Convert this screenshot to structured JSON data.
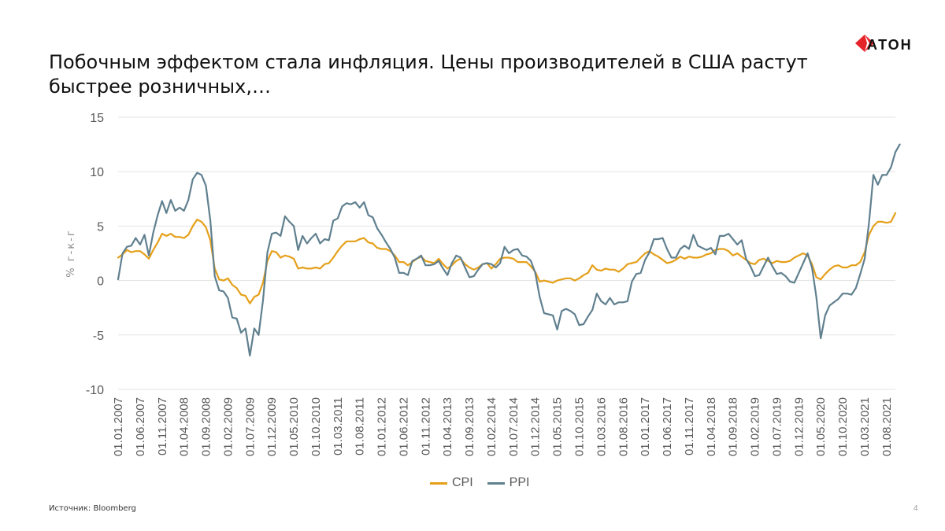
{
  "title": "Побочным эффектом стала инфляция. Цены производителей в США растут быстрее розничных,…",
  "logo": {
    "text": "АТОН"
  },
  "source": "Источник: Bloomberg",
  "page_number": "4",
  "colors": {
    "cpi": "#E5A01A",
    "ppi": "#60808F",
    "grid": "#E3E3E3",
    "axis_text": "#595959",
    "logo_red": "#E5242A"
  },
  "chart_data": {
    "type": "line",
    "title": "",
    "xlabel": "",
    "ylabel": "% г-к-г",
    "ylim": [
      -10,
      15
    ],
    "yticks": [
      15,
      10,
      5,
      0,
      -5,
      -10
    ],
    "grid": true,
    "legend_position": "bottom",
    "x_start": "01.01.2007",
    "x_frequency": "monthly",
    "x_tick_labels": [
      "01.01.2007",
      "01.06.2007",
      "01.11.2007",
      "01.04.2008",
      "01.09.2008",
      "01.02.2009",
      "01.07.2009",
      "01.12.2009",
      "01.05.2010",
      "01.10.2010",
      "01.03.2011",
      "01.08.2011",
      "01.01.2012",
      "01.06.2012",
      "01.11.2012",
      "01.04.2013",
      "01.09.2013",
      "01.02.2014",
      "01.07.2014",
      "01.12.2014",
      "01.05.2015",
      "01.10.2015",
      "01.03.2016",
      "01.08.2016",
      "01.01.2017",
      "01.06.2017",
      "01.11.2017",
      "01.04.2018",
      "01.09.2018",
      "01.02.2019",
      "01.07.2019",
      "01.12.2019",
      "01.05.2020",
      "01.10.2020",
      "01.03.2021",
      "01.08.2021"
    ],
    "series": [
      {
        "name": "CPI",
        "color": "#E5A01A",
        "values": [
          2.1,
          2.4,
          2.8,
          2.6,
          2.7,
          2.7,
          2.4,
          2.0,
          2.8,
          3.5,
          4.3,
          4.1,
          4.3,
          4.0,
          4.0,
          3.9,
          4.2,
          5.0,
          5.6,
          5.4,
          4.9,
          3.7,
          1.1,
          0.1,
          0.0,
          0.2,
          -0.4,
          -0.7,
          -1.3,
          -1.4,
          -2.1,
          -1.5,
          -1.3,
          -0.2,
          1.8,
          2.7,
          2.6,
          2.1,
          2.3,
          2.2,
          2.0,
          1.1,
          1.2,
          1.1,
          1.1,
          1.2,
          1.1,
          1.5,
          1.6,
          2.1,
          2.7,
          3.2,
          3.6,
          3.6,
          3.6,
          3.8,
          3.9,
          3.5,
          3.4,
          3.0,
          2.9,
          2.9,
          2.7,
          2.3,
          1.7,
          1.7,
          1.4,
          1.7,
          2.0,
          2.2,
          1.8,
          1.7,
          1.6,
          2.0,
          1.5,
          1.1,
          1.4,
          1.8,
          2.0,
          1.5,
          1.2,
          1.0,
          1.2,
          1.5,
          1.6,
          1.1,
          1.5,
          2.0,
          2.1,
          2.1,
          2.0,
          1.7,
          1.7,
          1.7,
          1.3,
          0.8,
          -0.1,
          0.0,
          -0.1,
          -0.2,
          0.0,
          0.1,
          0.2,
          0.2,
          0.0,
          0.2,
          0.5,
          0.7,
          1.4,
          1.0,
          0.9,
          1.1,
          1.0,
          1.0,
          0.8,
          1.1,
          1.5,
          1.6,
          1.7,
          2.1,
          2.5,
          2.7,
          2.4,
          2.2,
          1.9,
          1.6,
          1.7,
          1.9,
          2.2,
          2.0,
          2.2,
          2.1,
          2.1,
          2.2,
          2.4,
          2.5,
          2.8,
          2.9,
          2.9,
          2.7,
          2.3,
          2.5,
          2.2,
          1.9,
          1.6,
          1.5,
          1.9,
          2.0,
          1.8,
          1.6,
          1.8,
          1.7,
          1.7,
          1.8,
          2.1,
          2.3,
          2.5,
          2.3,
          1.5,
          0.3,
          0.1,
          0.6,
          1.0,
          1.3,
          1.4,
          1.2,
          1.2,
          1.4,
          1.4,
          1.7,
          2.6,
          4.2,
          5.0,
          5.4,
          5.4,
          5.3,
          5.4,
          6.2
        ]
      },
      {
        "name": "PPI",
        "color": "#60808F",
        "values": [
          0.1,
          2.5,
          3.1,
          3.2,
          3.9,
          3.3,
          4.2,
          2.3,
          4.4,
          6.0,
          7.3,
          6.2,
          7.4,
          6.4,
          6.7,
          6.4,
          7.4,
          9.3,
          9.9,
          9.7,
          8.7,
          5.5,
          0.4,
          -0.9,
          -1.0,
          -1.6,
          -3.4,
          -3.5,
          -4.8,
          -4.4,
          -6.9,
          -4.4,
          -5.0,
          -1.8,
          2.6,
          4.3,
          4.4,
          4.1,
          5.9,
          5.4,
          5.0,
          2.8,
          4.1,
          3.4,
          3.9,
          4.3,
          3.4,
          3.8,
          3.7,
          5.5,
          5.7,
          6.8,
          7.1,
          7.0,
          7.2,
          6.7,
          7.2,
          6.0,
          5.8,
          4.8,
          4.2,
          3.5,
          2.9,
          2.1,
          0.7,
          0.7,
          0.5,
          1.8,
          2.0,
          2.3,
          1.4,
          1.4,
          1.5,
          1.8,
          1.1,
          0.5,
          1.6,
          2.3,
          2.1,
          1.2,
          0.3,
          0.4,
          1.0,
          1.5,
          1.6,
          1.5,
          1.2,
          1.6,
          3.1,
          2.5,
          2.8,
          2.9,
          2.3,
          2.2,
          1.8,
          0.7,
          -1.5,
          -3.0,
          -3.1,
          -3.2,
          -4.5,
          -2.8,
          -2.6,
          -2.8,
          -3.1,
          -4.1,
          -4.0,
          -3.3,
          -2.7,
          -1.2,
          -1.9,
          -2.2,
          -1.6,
          -2.2,
          -2.0,
          -2.0,
          -1.9,
          -0.1,
          0.6,
          0.7,
          1.9,
          2.6,
          3.8,
          3.8,
          3.9,
          2.9,
          2.1,
          2.1,
          2.9,
          3.2,
          2.9,
          4.2,
          3.2,
          3.0,
          2.8,
          3.0,
          2.4,
          4.1,
          4.1,
          4.3,
          3.8,
          3.3,
          3.7,
          2.0,
          1.3,
          0.4,
          0.5,
          1.3,
          2.1,
          1.3,
          0.6,
          0.7,
          0.4,
          -0.1,
          -0.2,
          0.7,
          1.6,
          2.5,
          1.2,
          -1.5,
          -5.3,
          -3.2,
          -2.3,
          -2.0,
          -1.7,
          -1.2,
          -1.2,
          -1.3,
          -0.7,
          0.6,
          2.0,
          5.3,
          9.7,
          8.8,
          9.7,
          9.7,
          10.4,
          11.8,
          12.5
        ]
      }
    ]
  }
}
